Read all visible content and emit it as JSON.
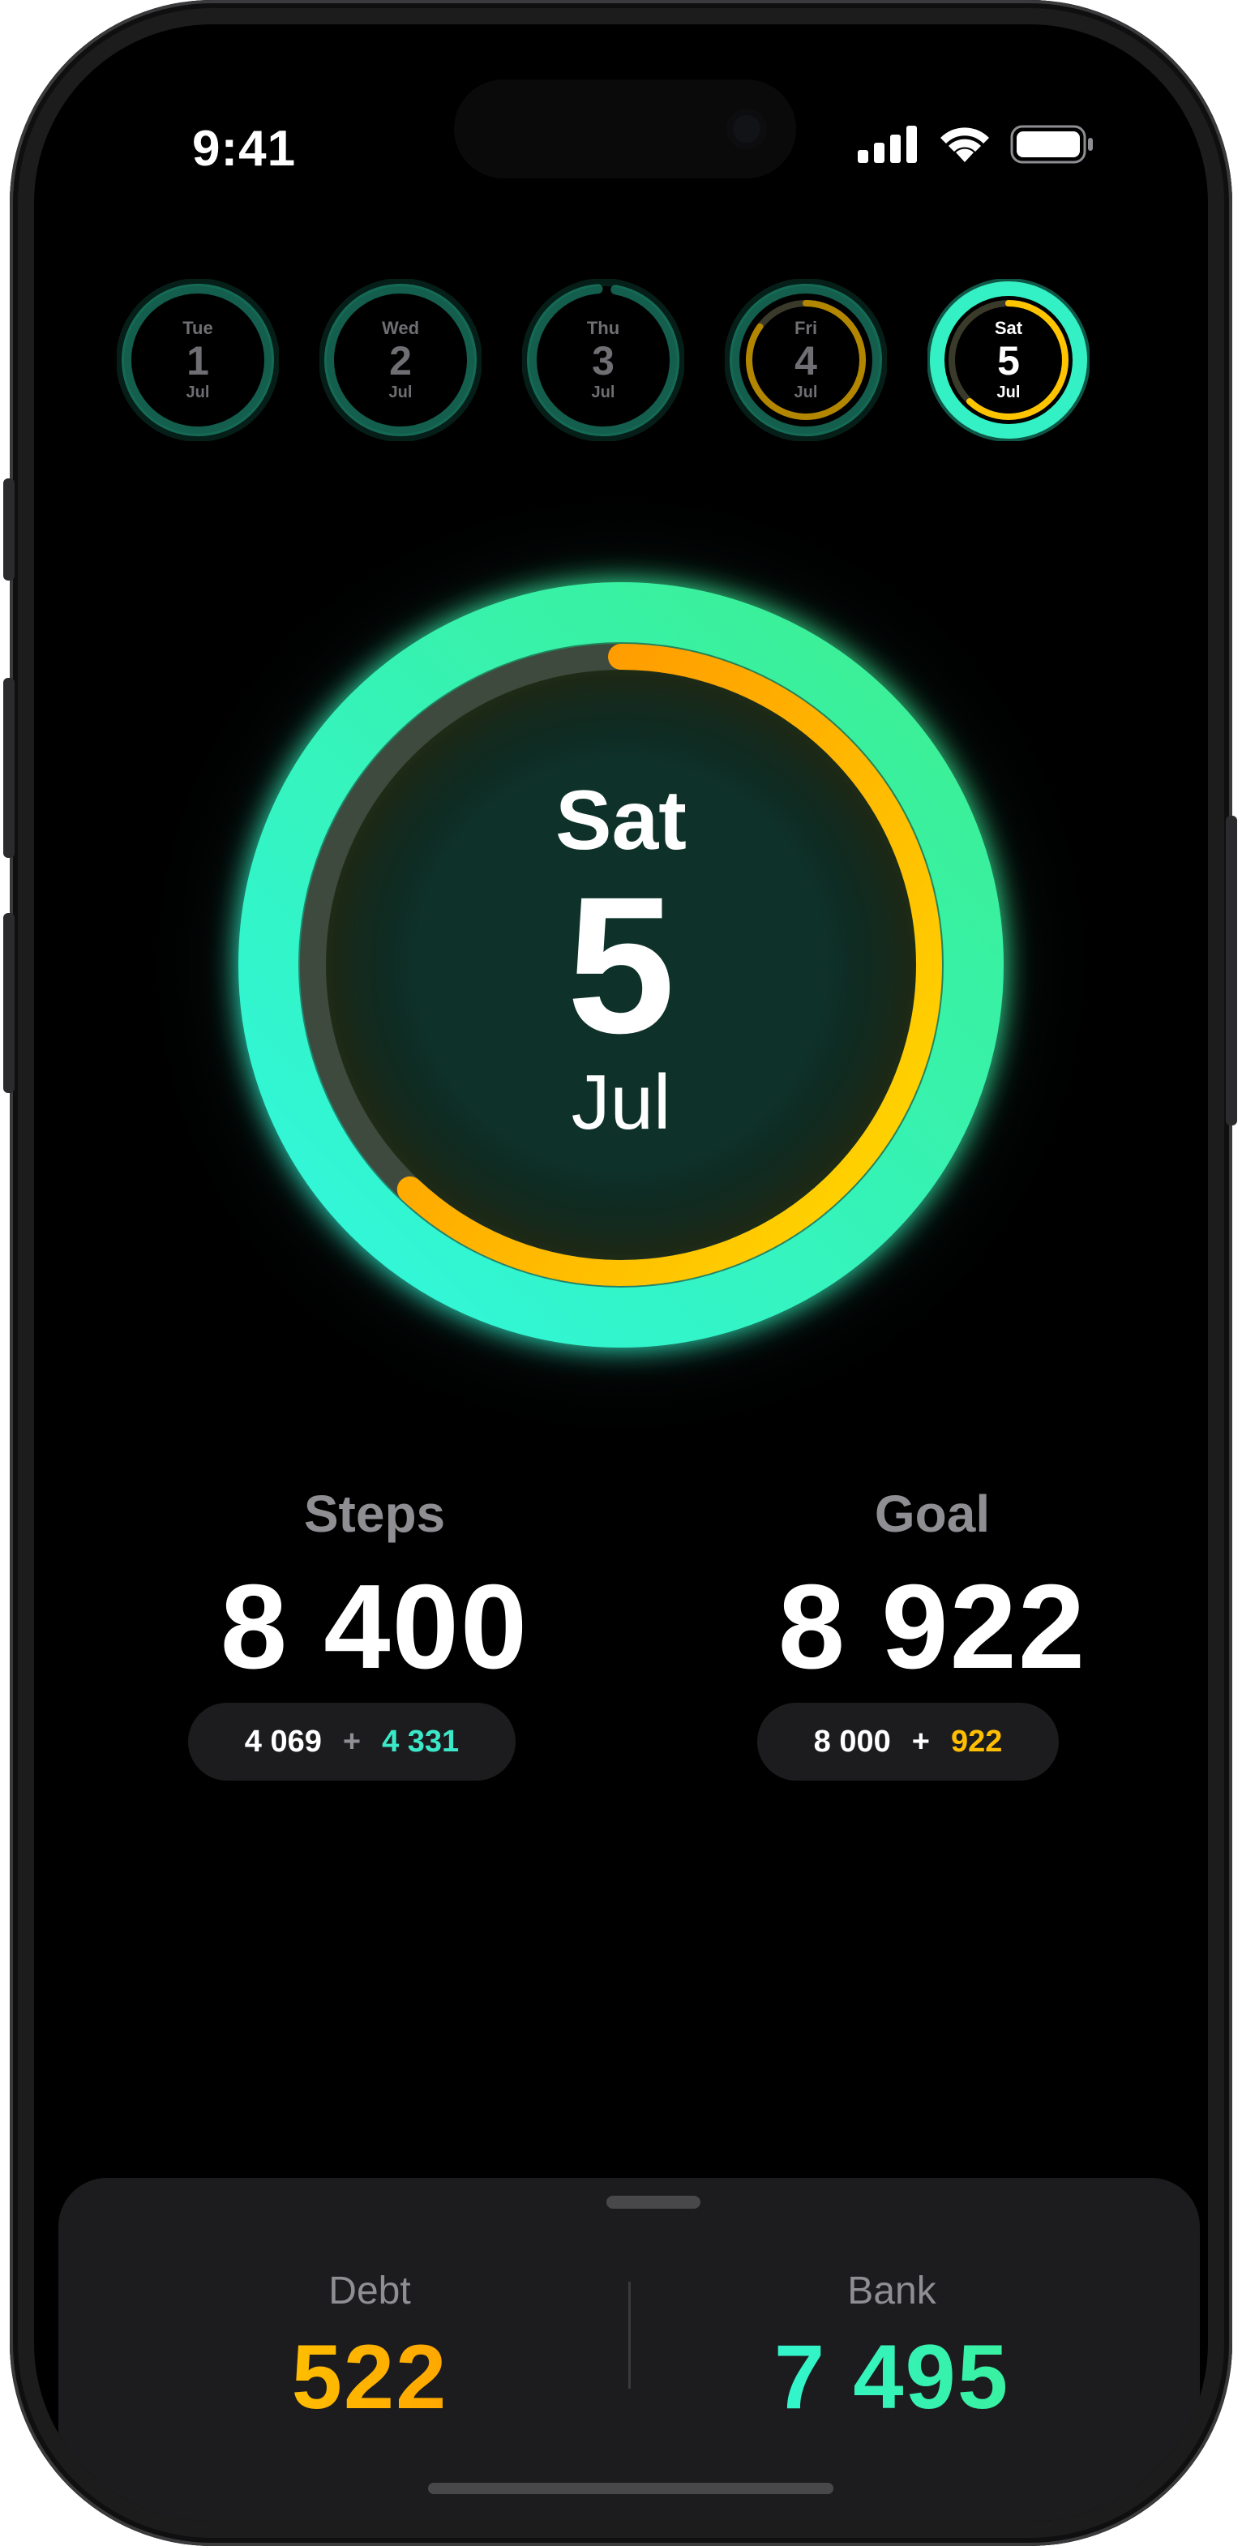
{
  "status_bar": {
    "time": "9:41",
    "icons": [
      "cellular-signal-icon",
      "wifi-icon",
      "battery-icon"
    ]
  },
  "day_selector": [
    {
      "weekday": "Tue",
      "day": "1",
      "month": "Jul",
      "steps_fraction": 1.0,
      "extra_fraction": 0.0,
      "selected": false
    },
    {
      "weekday": "Wed",
      "day": "2",
      "month": "Jul",
      "steps_fraction": 1.0,
      "extra_fraction": 0.0,
      "selected": false
    },
    {
      "weekday": "Thu",
      "day": "3",
      "month": "Jul",
      "steps_fraction": 0.96,
      "extra_fraction": 0.0,
      "selected": false
    },
    {
      "weekday": "Fri",
      "day": "4",
      "month": "Jul",
      "steps_fraction": 1.0,
      "extra_fraction": 0.85,
      "selected": false
    },
    {
      "weekday": "Sat",
      "day": "5",
      "month": "Jul",
      "steps_fraction": 1.0,
      "extra_fraction": 0.62,
      "selected": true
    }
  ],
  "selected_day": {
    "weekday": "Sat",
    "day": "5",
    "month": "Jul",
    "outer_ring_fraction": 1.0,
    "inner_ring_fraction": 0.62
  },
  "stats": {
    "steps": {
      "label": "Steps",
      "value": "8 400",
      "part_a": "4 069",
      "plus": "+",
      "part_b": "4 331"
    },
    "goal": {
      "label": "Goal",
      "value": "8 922",
      "part_a": "8 000",
      "plus": "+",
      "part_b": "922"
    }
  },
  "sheet": {
    "debt": {
      "label": "Debt",
      "value": "522"
    },
    "bank": {
      "label": "Bank",
      "value": "7 495"
    }
  },
  "colors": {
    "background": "#000000",
    "ring_teal": "#2ef5c8",
    "ring_green": "#35e89a",
    "ring_yellow": "#ffd000",
    "ring_orange": "#ff9500",
    "teal_text": "#3be9c9",
    "yellow_text": "#ffbf00",
    "muted": "#8e8e93"
  }
}
